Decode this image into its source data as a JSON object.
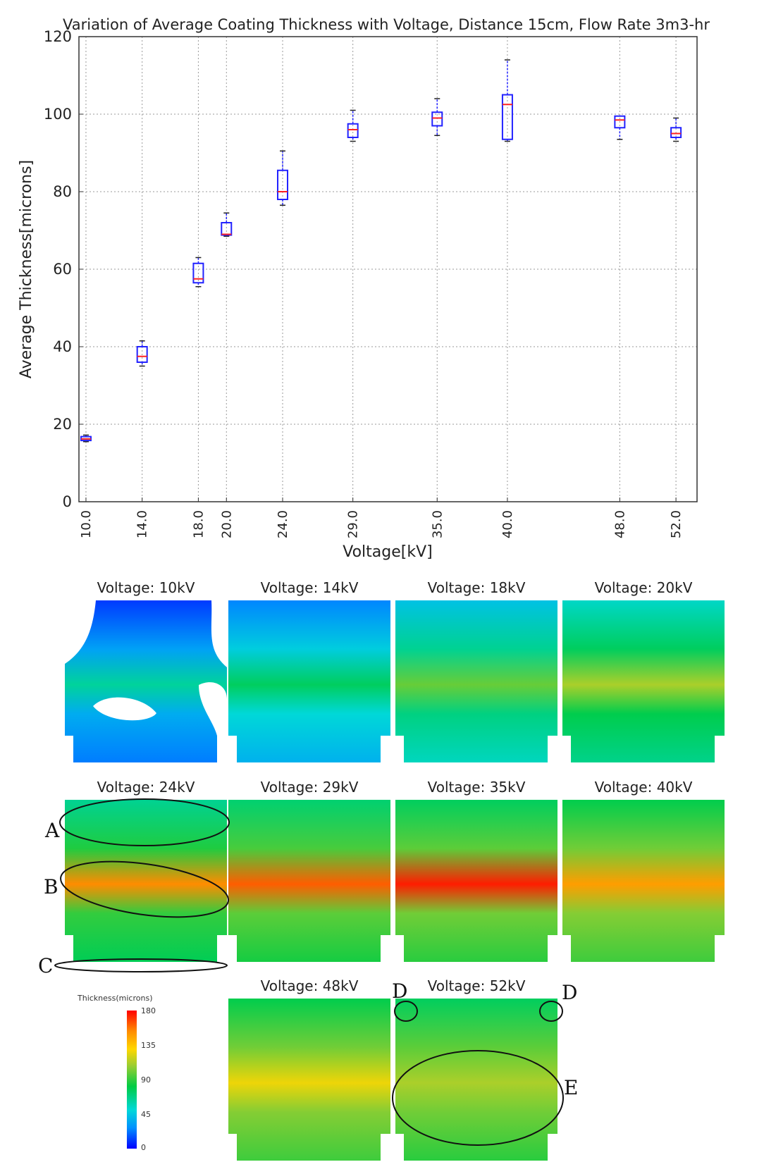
{
  "chart_data": {
    "type": "box",
    "title": "Variation of Average Coating Thickness with Voltage, Distance 15cm, Flow Rate 3m3-hr",
    "xlabel": "Voltage[kV]",
    "ylabel": "Average Thickness[microns]",
    "xlim": [
      9.5,
      53.5
    ],
    "ylim": [
      0,
      120
    ],
    "yticks": [
      0,
      20,
      40,
      60,
      80,
      100,
      120
    ],
    "xtick_labels": [
      "10.0",
      "14.0",
      "18.0",
      "20.0",
      "24.0",
      "29.0",
      "35.0",
      "40.0",
      "48.0",
      "52.0"
    ],
    "grid": true,
    "boxes": [
      {
        "x": 10,
        "min": 15.5,
        "q1": 15.8,
        "median": 16.2,
        "q3": 16.8,
        "max": 17.2
      },
      {
        "x": 14,
        "min": 35,
        "q1": 36,
        "median": 37.5,
        "q3": 40,
        "max": 41.5
      },
      {
        "x": 18,
        "min": 55.5,
        "q1": 56.5,
        "median": 57.5,
        "q3": 61.5,
        "max": 63
      },
      {
        "x": 20,
        "min": 68.5,
        "q1": 68.8,
        "median": 69,
        "q3": 72,
        "max": 74.5
      },
      {
        "x": 24,
        "min": 76.5,
        "q1": 78,
        "median": 80,
        "q3": 85.5,
        "max": 90.5
      },
      {
        "x": 29,
        "min": 93,
        "q1": 94,
        "median": 96,
        "q3": 97.5,
        "max": 101
      },
      {
        "x": 35,
        "min": 94.5,
        "q1": 97,
        "median": 99,
        "q3": 100.5,
        "max": 104
      },
      {
        "x": 40,
        "min": 93,
        "q1": 93.5,
        "median": 102.5,
        "q3": 105,
        "max": 114
      },
      {
        "x": 48,
        "min": 93.5,
        "q1": 96.5,
        "median": 98.5,
        "q3": 99.5,
        "max": 99.5
      },
      {
        "x": 52,
        "min": 93,
        "q1": 94,
        "median": 95,
        "q3": 96.5,
        "max": 99
      }
    ]
  },
  "maps": [
    {
      "title": "Voltage: 10kV",
      "level": 0.18,
      "band": 0.35
    },
    {
      "title": "Voltage: 14kV",
      "level": 0.26,
      "band": 0.42
    },
    {
      "title": "Voltage: 18kV",
      "level": 0.36,
      "band": 0.55
    },
    {
      "title": "Voltage: 20kV",
      "level": 0.42,
      "band": 0.62
    },
    {
      "title": "Voltage: 24kV",
      "level": 0.48,
      "band": 0.85
    },
    {
      "title": "Voltage: 29kV",
      "level": 0.52,
      "band": 0.9
    },
    {
      "title": "Voltage: 35kV",
      "level": 0.54,
      "band": 0.97
    },
    {
      "title": "Voltage: 40kV",
      "level": 0.56,
      "band": 0.82
    },
    {
      "title": "Voltage: 48kV",
      "level": 0.56,
      "band": 0.7
    },
    {
      "title": "Voltage: 52kV",
      "level": 0.54,
      "band": 0.62
    }
  ],
  "annotations": {
    "a": "A",
    "b": "B",
    "c": "C",
    "d": "D",
    "e": "E"
  },
  "legend": {
    "title": "Thickness(microns)",
    "ticks": [
      "180",
      "135",
      "90",
      "45",
      "0"
    ]
  },
  "colors": {
    "box": "#2222ff",
    "median": "#ff2222",
    "grid": "#9a9a9a"
  }
}
